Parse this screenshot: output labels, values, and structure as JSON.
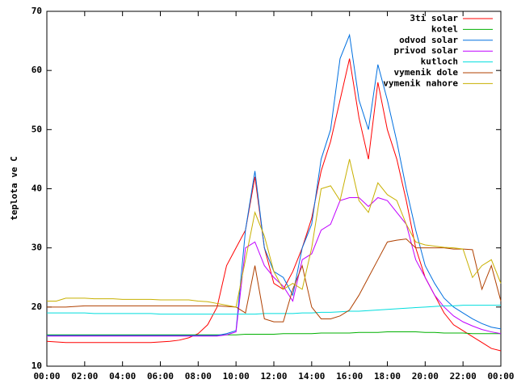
{
  "chart_data": {
    "type": "line",
    "y_label": "teplota ve C",
    "x": [
      0,
      0.5,
      1,
      1.5,
      2,
      2.5,
      3,
      3.5,
      4,
      4.5,
      5,
      5.5,
      6,
      6.5,
      7,
      7.5,
      8,
      8.5,
      9,
      9.5,
      10,
      10.5,
      11,
      11.5,
      12,
      12.5,
      13,
      13.5,
      14,
      14.5,
      15,
      15.5,
      16,
      16.5,
      17,
      17.5,
      18,
      18.5,
      19,
      19.5,
      20,
      20.5,
      21,
      21.5,
      22,
      22.5,
      23,
      23.5,
      24
    ],
    "xlim": [
      0,
      24
    ],
    "xticks": [
      {
        "value": 0,
        "label": "00:00"
      },
      {
        "value": 2,
        "label": "02:00"
      },
      {
        "value": 4,
        "label": "04:00"
      },
      {
        "value": 6,
        "label": "06:00"
      },
      {
        "value": 8,
        "label": "08:00"
      },
      {
        "value": 10,
        "label": "10:00"
      },
      {
        "value": 12,
        "label": "12:00"
      },
      {
        "value": 14,
        "label": "14:00"
      },
      {
        "value": 16,
        "label": "16:00"
      },
      {
        "value": 18,
        "label": "18:00"
      },
      {
        "value": 20,
        "label": "20:00"
      },
      {
        "value": 22,
        "label": "22:00"
      },
      {
        "value": 24,
        "label": "00:00"
      }
    ],
    "ylim": [
      10,
      70
    ],
    "yticks": [
      10,
      20,
      30,
      40,
      50,
      60,
      70
    ],
    "legend": "top-right",
    "series": [
      {
        "name": "3ti solar",
        "color": "#ff0000",
        "values": [
          14.2,
          14.1,
          14,
          14,
          14,
          14,
          14,
          14,
          14,
          14,
          14,
          14,
          14.1,
          14.2,
          14.4,
          14.8,
          15.5,
          17,
          20,
          27,
          30,
          33,
          42,
          30,
          24,
          23,
          26,
          30,
          35,
          43,
          48,
          55,
          62,
          52,
          45,
          58,
          50,
          45,
          38,
          30,
          25,
          22,
          19,
          17,
          16,
          15,
          14,
          13,
          12.6
        ]
      },
      {
        "name": "kotel",
        "color": "#00b000",
        "values": [
          15.3,
          15.3,
          15.3,
          15.3,
          15.3,
          15.3,
          15.3,
          15.3,
          15.3,
          15.3,
          15.3,
          15.3,
          15.3,
          15.3,
          15.3,
          15.3,
          15.3,
          15.3,
          15.3,
          15.3,
          15.3,
          15.4,
          15.4,
          15.4,
          15.4,
          15.5,
          15.5,
          15.5,
          15.5,
          15.6,
          15.6,
          15.6,
          15.6,
          15.7,
          15.7,
          15.7,
          15.8,
          15.8,
          15.8,
          15.8,
          15.7,
          15.7,
          15.6,
          15.6,
          15.6,
          15.5,
          15.5,
          15.5,
          15.5
        ]
      },
      {
        "name": "odvod solar",
        "color": "#0070e0",
        "values": [
          15.2,
          15.2,
          15.2,
          15.2,
          15.2,
          15.2,
          15.2,
          15.2,
          15.2,
          15.2,
          15.2,
          15.2,
          15.2,
          15.2,
          15.2,
          15.2,
          15.2,
          15.2,
          15.2,
          15.5,
          16,
          33,
          43,
          30,
          26,
          25,
          22,
          30,
          34,
          45,
          50,
          62,
          66,
          55,
          50,
          61,
          55,
          48,
          40,
          33,
          27,
          24,
          21.5,
          20,
          19,
          18,
          17.2,
          16.6,
          16.3
        ]
      },
      {
        "name": "privod solar",
        "color": "#c000ff",
        "values": [
          15.1,
          15.1,
          15.1,
          15.1,
          15.1,
          15.1,
          15.1,
          15.1,
          15.1,
          15.1,
          15.1,
          15.1,
          15.1,
          15.1,
          15.1,
          15.1,
          15.1,
          15.1,
          15.1,
          15.3,
          15.8,
          30,
          31,
          27,
          25,
          23.5,
          21,
          28,
          29,
          33,
          34,
          38,
          38.5,
          38.5,
          37,
          38.5,
          38,
          36,
          34,
          28,
          25,
          22,
          20,
          18.5,
          17.5,
          16.8,
          16.2,
          15.8,
          15.5
        ]
      },
      {
        "name": "kutloch",
        "color": "#00dddd",
        "values": [
          19,
          19,
          19,
          19,
          19,
          18.9,
          18.9,
          18.9,
          18.9,
          18.9,
          18.9,
          18.9,
          18.8,
          18.8,
          18.8,
          18.8,
          18.8,
          18.8,
          18.8,
          18.8,
          18.8,
          18.8,
          18.8,
          18.9,
          18.9,
          18.9,
          18.9,
          19,
          19,
          19.1,
          19.1,
          19.2,
          19.3,
          19.3,
          19.4,
          19.5,
          19.6,
          19.7,
          19.8,
          19.9,
          20,
          20.1,
          20.2,
          20.2,
          20.3,
          20.3,
          20.3,
          20.3,
          20.3
        ]
      },
      {
        "name": "vymenik dole",
        "color": "#b04000",
        "values": [
          20,
          20,
          20,
          20.1,
          20.2,
          20.2,
          20.2,
          20.2,
          20.2,
          20.2,
          20.2,
          20.2,
          20.2,
          20.2,
          20.2,
          20.2,
          20.2,
          20.2,
          20.2,
          20.1,
          20,
          19,
          27,
          18,
          17.5,
          17.5,
          23,
          27,
          20,
          18,
          18,
          18.5,
          19.5,
          22,
          25,
          28,
          31,
          31.3,
          31.5,
          30,
          30,
          30,
          30,
          29.8,
          29.8,
          29.7,
          23,
          27,
          21
        ]
      },
      {
        "name": "vymenik nahore",
        "color": "#c8b000",
        "values": [
          21,
          21,
          21.5,
          21.5,
          21.5,
          21.4,
          21.4,
          21.4,
          21.3,
          21.3,
          21.3,
          21.3,
          21.2,
          21.2,
          21.2,
          21.2,
          21,
          20.9,
          20.6,
          20.3,
          20,
          28,
          36,
          32,
          26,
          23,
          24,
          23,
          30,
          40,
          40.5,
          38,
          45,
          38,
          36,
          41,
          39,
          38,
          34,
          31,
          30.5,
          30.3,
          30.1,
          30,
          29.8,
          25,
          27,
          28,
          24
        ]
      }
    ]
  }
}
